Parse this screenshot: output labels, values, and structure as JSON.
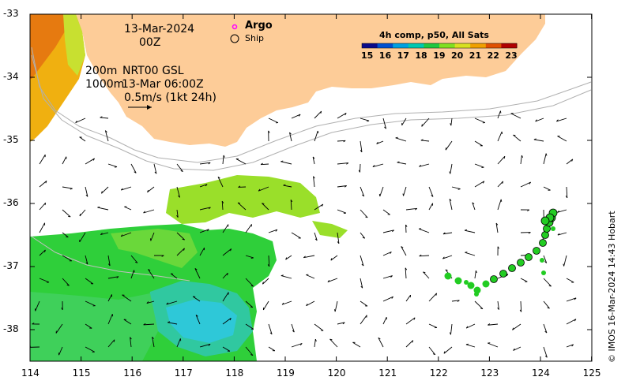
{
  "map": {
    "date_line1": "13-Mar-2024",
    "date_line2": "00Z",
    "contour_label_1": "200m",
    "contour_label_2": "1000m",
    "current_label": "NRT00 GSL",
    "current_time": "13-Mar 06:00Z",
    "scale_label": "0.5m/s (1kt 24h)",
    "lat_ticks": [
      "-33",
      "-34",
      "-35",
      "-36",
      "-37",
      "-38"
    ],
    "lon_ticks": [
      "114",
      "115",
      "116",
      "117",
      "118",
      "119",
      "120",
      "121",
      "122",
      "123",
      "124",
      "125"
    ],
    "credit": "© IMOS 16-Mar-2024 14:43 Hobart",
    "colors": {
      "land": "#fdcc98",
      "argo_marker": "#ff00ff",
      "ship_track": "#22cc22"
    }
  },
  "legend": {
    "argo": "Argo",
    "ship": "Ship"
  },
  "colorbar": {
    "title": "4h comp, p50, All Sats",
    "ticks": [
      "15",
      "16",
      "17",
      "18",
      "19",
      "20",
      "21",
      "22",
      "23"
    ],
    "colors": [
      "#0a0a8a",
      "#0050d0",
      "#00a0e0",
      "#00c8b0",
      "#20c840",
      "#80e020",
      "#d8e020",
      "#f0a000",
      "#e05000",
      "#b00000"
    ]
  }
}
